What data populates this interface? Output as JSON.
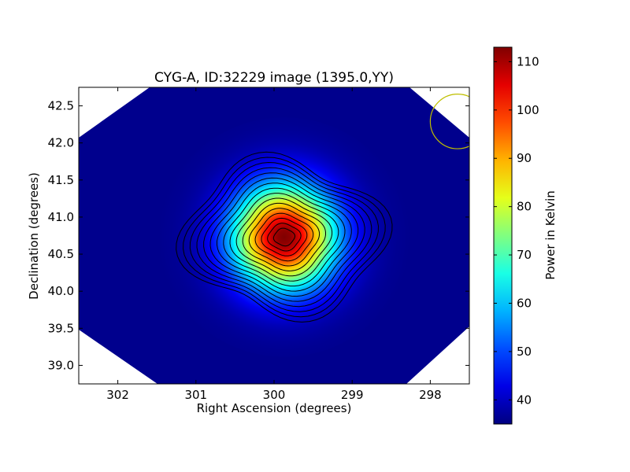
{
  "chart_data": {
    "type": "heatmap",
    "title": "CYG-A, ID:32229 image (1395.0,YY)",
    "xlabel": "Right Ascension (degrees)",
    "ylabel": "Declination (degrees)",
    "xlim": [
      302.5,
      297.5
    ],
    "ylim": [
      38.75,
      42.75
    ],
    "x_ticks": [
      302,
      301,
      300,
      299,
      298
    ],
    "y_ticks": [
      39.0,
      39.5,
      40.0,
      40.5,
      41.0,
      41.5,
      42.0,
      42.5
    ],
    "x_tick_labels": [
      "302",
      "301",
      "300",
      "299",
      "298"
    ],
    "y_tick_labels": [
      "39.0",
      "39.5",
      "40.0",
      "40.5",
      "41.0",
      "41.5",
      "42.0",
      "42.5"
    ],
    "colormap": "jet",
    "colorbar": {
      "label": "Power in Kelvin",
      "range": [
        35,
        113
      ],
      "ticks": [
        40,
        50,
        60,
        70,
        80,
        90,
        100,
        110
      ],
      "tick_labels": [
        "40",
        "50",
        "60",
        "70",
        "80",
        "90",
        "100",
        "110"
      ]
    },
    "source": {
      "ra": 299.87,
      "dec": 40.73,
      "peak": 113
    },
    "background_level": 36,
    "contours": {
      "count": 16,
      "color": "#000000"
    },
    "beam_circle": {
      "ra": 297.65,
      "dec": 42.29,
      "radius_deg": 0.35,
      "color": "#bfbf00"
    },
    "grid": false
  }
}
